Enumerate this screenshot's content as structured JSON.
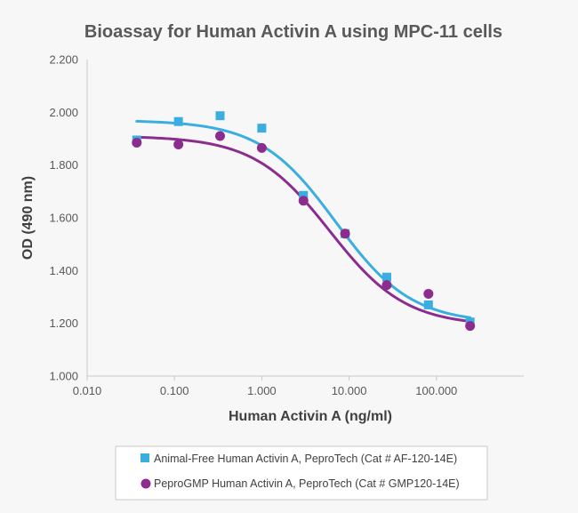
{
  "chart_data": {
    "type": "scatter",
    "title": "Bioassay for Human Activin A using MPC-11 cells",
    "xlabel": "Human Activin A (ng/ml)",
    "ylabel": "OD (490 nm)",
    "xscale": "log",
    "xlim": [
      0.01,
      1000
    ],
    "ylim": [
      1.0,
      2.2
    ],
    "xticks": [
      "0.010",
      "0.100",
      "1.000",
      "10.000",
      "100.000"
    ],
    "yticks": [
      "1.000",
      "1.200",
      "1.400",
      "1.600",
      "1.800",
      "2.000",
      "2.200"
    ],
    "grid": false,
    "legend_position": "bottom",
    "series": [
      {
        "name": "Animal-Free Human Activin A, PeproTech (Cat # AF-120-14E)",
        "marker": "square",
        "color": "#3aaee0",
        "x": [
          0.037,
          0.111,
          0.333,
          1.0,
          3.0,
          9.0,
          27.0,
          81.0,
          243.0
        ],
        "y": [
          1.895,
          1.965,
          1.987,
          1.94,
          1.685,
          1.54,
          1.375,
          1.27,
          1.205
        ],
        "fit": {
          "type": "4PL",
          "top": 1.97,
          "bottom": 1.2,
          "ec50": 7.0,
          "hill": 1.0
        }
      },
      {
        "name": "PeproGMP Human Activin A, PeproTech (Cat # GMP120-14E)",
        "marker": "circle",
        "color": "#8b2d8e",
        "x": [
          0.037,
          0.111,
          0.333,
          1.0,
          3.0,
          9.0,
          27.0,
          81.0,
          243.0
        ],
        "y": [
          1.885,
          1.878,
          1.91,
          1.865,
          1.665,
          1.54,
          1.345,
          1.312,
          1.19
        ],
        "fit": {
          "type": "4PL",
          "top": 1.91,
          "bottom": 1.19,
          "ec50": 6.0,
          "hill": 1.0
        }
      }
    ]
  }
}
